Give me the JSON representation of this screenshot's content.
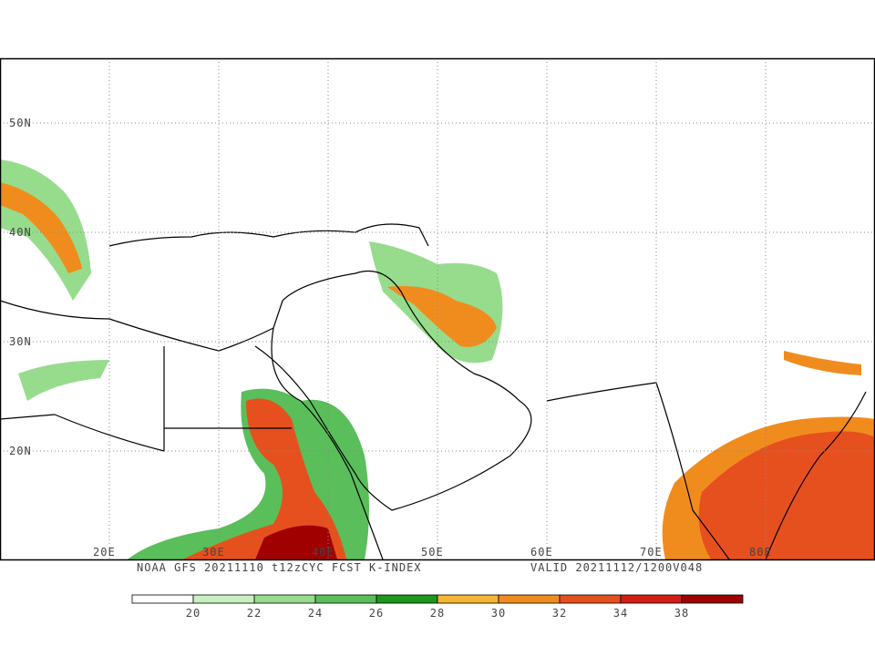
{
  "map": {
    "lat_labels": [
      "50N",
      "40N",
      "30N",
      "20N"
    ],
    "lon_labels": [
      "20E",
      "30E",
      "40E",
      "50E",
      "60E",
      "70E",
      "80E"
    ],
    "caption_left": "NOAA GFS 20211110 t12zCYC FCST K-INDEX",
    "caption_right": "VALID 20211112/1200V048"
  },
  "colorbar": {
    "labels": [
      20,
      22,
      24,
      26,
      28,
      30,
      32,
      34,
      38
    ],
    "colors": [
      "#ffffff",
      "#c8f0c0",
      "#96dc8c",
      "#5abe5a",
      "#1e961e",
      "#f5b432",
      "#f08c1e",
      "#e6501e",
      "#d21e14",
      "#a00000"
    ]
  }
}
